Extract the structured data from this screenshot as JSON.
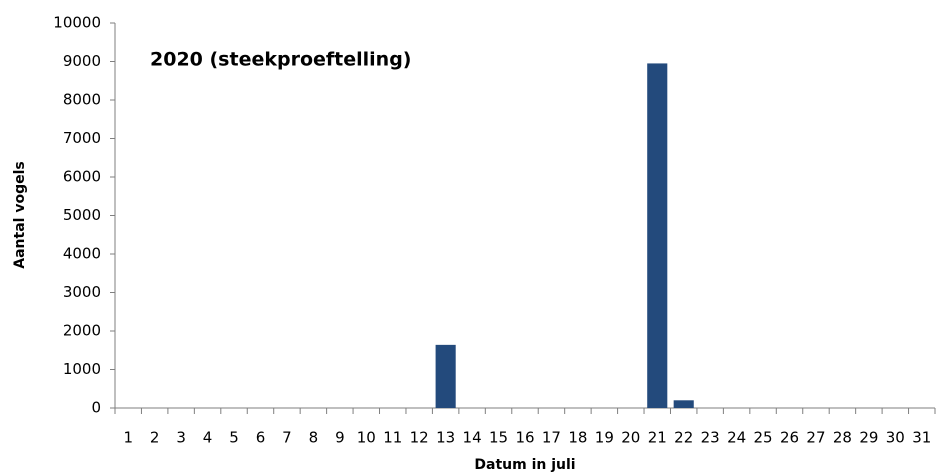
{
  "chart_data": {
    "type": "bar",
    "title": "2020 (steekproeftelling)",
    "x_label": "Datum in juli",
    "y_label": "Aantal vogels",
    "categories": [
      "1",
      "2",
      "3",
      "4",
      "5",
      "6",
      "7",
      "8",
      "9",
      "10",
      "11",
      "12",
      "13",
      "14",
      "15",
      "16",
      "17",
      "18",
      "19",
      "20",
      "21",
      "22",
      "23",
      "24",
      "25",
      "26",
      "27",
      "28",
      "29",
      "30",
      "31"
    ],
    "values": [
      0,
      0,
      0,
      0,
      0,
      0,
      0,
      0,
      0,
      0,
      0,
      0,
      1640,
      0,
      0,
      0,
      0,
      0,
      0,
      0,
      8950,
      200,
      0,
      0,
      0,
      0,
      0,
      0,
      0,
      0,
      0
    ],
    "color": "#234a7c",
    "ylim": [
      0,
      10000
    ],
    "yticks": [
      0,
      1000,
      2000,
      3000,
      4000,
      5000,
      6000,
      7000,
      8000,
      9000,
      10000
    ],
    "grid": false
  }
}
